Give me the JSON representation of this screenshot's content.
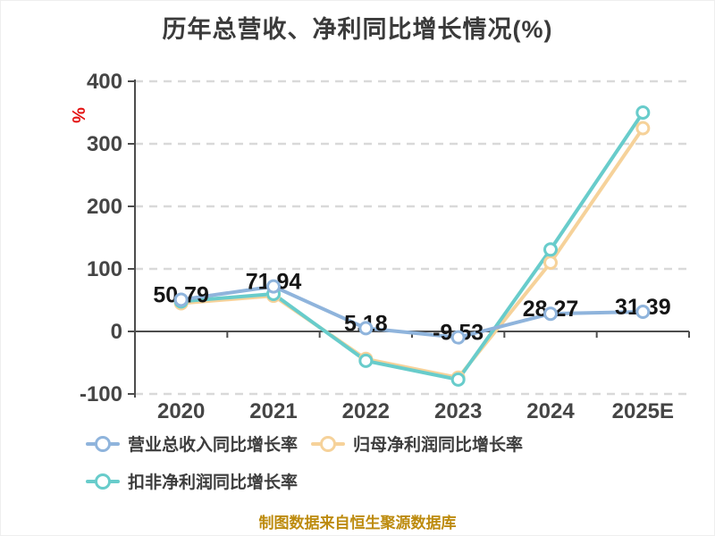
{
  "title": "历年总营收、净利同比增长情况(%)",
  "y_axis_unit_label": "%",
  "footer": {
    "text": "制图数据来自恒生聚源数据库",
    "color": "#bd8b0e"
  },
  "colors": {
    "title": "#3a3a3a",
    "axis_label": "#454545",
    "data_label": "#151515",
    "grid_line": "#d9d9d9",
    "axis_line": "#4d4d4d",
    "legend_text": "#3d3d3d",
    "unit_label_red": "#e31212",
    "background": "#ffffff"
  },
  "chart_data": {
    "type": "line",
    "title": "历年总营收、净利同比增长情况(%)",
    "categories": [
      "2020",
      "2021",
      "2022",
      "2023",
      "2024",
      "2025E"
    ],
    "y_axis": {
      "min": -100,
      "max": 400,
      "interval": 100,
      "ticks": [
        400,
        300,
        200,
        100,
        0,
        -100
      ],
      "unit": "%"
    },
    "grid": {
      "horizontal_dashed_lines": true,
      "zero_axis_solid": true
    },
    "legend_position": "bottom-left-two-rows",
    "series": [
      {
        "id": "total-revenue-yoy",
        "name": "营业总收入同比增长率",
        "color": "#8fb4dc",
        "values": [
          50.79,
          71.94,
          5.18,
          -9.53,
          28.27,
          31.39
        ],
        "point_labels": [
          "50.79",
          "71.94",
          "5.18",
          "-9.53",
          "28.27",
          "31.39"
        ],
        "show_labels": true
      },
      {
        "id": "net-profit-yoy",
        "name": "归母净利润同比增长率",
        "color": "#f6d29a",
        "values": [
          45,
          57,
          -44,
          -74,
          110,
          325
        ],
        "show_labels": false
      },
      {
        "id": "non-gaap-net-profit-yoy",
        "name": "扣非净利润同比增长率",
        "color": "#68cccb",
        "values": [
          48,
          60,
          -47,
          -77,
          131,
          350
        ],
        "show_labels": false
      }
    ],
    "z_order": [
      1,
      2,
      0
    ]
  }
}
